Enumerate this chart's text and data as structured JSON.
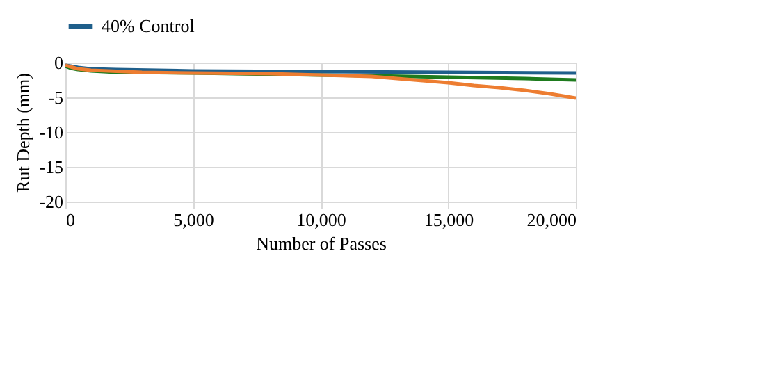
{
  "chart_data": {
    "type": "line",
    "xlabel": "Number of Passes",
    "ylabel": "Rut Depth (mm)",
    "xlim": [
      0,
      20000
    ],
    "xticks": [
      0,
      {
        "value": 5000,
        "label": "5,000"
      },
      {
        "value": 10000,
        "label": "10,000"
      },
      {
        "value": 15000,
        "label": "15,000"
      },
      {
        "value": 20000,
        "label": "20,000"
      }
    ],
    "ylim": [
      -20,
      0
    ],
    "yticks": [
      -20,
      -15,
      -10,
      -5,
      0
    ],
    "grid": true,
    "legend": "top",
    "marker": "none",
    "line_style": "solid",
    "series": [
      {
        "name": "40% Control",
        "color": "#1f5f8b",
        "x": [
          0,
          200,
          500,
          1000,
          2000,
          5000,
          10000,
          15000,
          20000
        ],
        "values": [
          -0.4,
          -0.5,
          -0.7,
          -0.9,
          -1.0,
          -1.2,
          -1.3,
          -1.4,
          -1.5
        ]
      },
      {
        "color": "#ed7d31",
        "x": [
          0,
          200,
          500,
          1000,
          3000,
          5000,
          8000,
          10000,
          12000,
          13000,
          14000,
          15000,
          16000,
          17000,
          18000,
          19000,
          20000
        ],
        "values": [
          -0.4,
          -0.6,
          -0.9,
          -1.1,
          -1.4,
          -1.5,
          -1.6,
          -1.8,
          -2.0,
          -2.3,
          -2.6,
          -2.9,
          -3.3,
          -3.6,
          -4.0,
          -4.5,
          -5.1
        ]
      },
      {
        "color": "#1e7b1e",
        "x": [
          0,
          200,
          500,
          1000,
          2000,
          5000,
          10000,
          12000,
          15000,
          18000,
          20000
        ],
        "values": [
          -0.5,
          -0.8,
          -1.0,
          -1.2,
          -1.4,
          -1.5,
          -1.8,
          -1.9,
          -2.1,
          -2.3,
          -2.5
        ]
      }
    ]
  }
}
